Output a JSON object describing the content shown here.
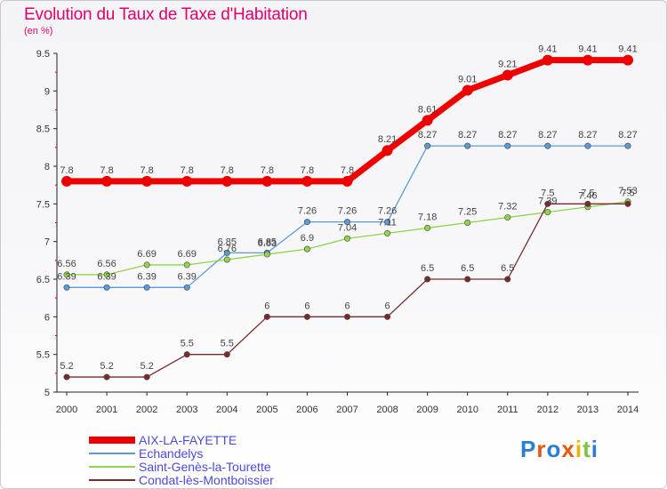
{
  "title": "Evolution du Taux de Taxe d'Habitation",
  "subtitle": "(en %)",
  "logo": {
    "text": "Proxiti",
    "letters": [
      "P",
      "r",
      "o",
      "x",
      "i",
      "t",
      "i"
    ],
    "colors": [
      "#2a7fd4",
      "#e05a10",
      "#2a7fd4",
      "#e05a10",
      "#f0b000",
      "#7cc242",
      "#2a7fd4"
    ]
  },
  "chart_data": {
    "type": "line",
    "title": "Evolution du Taux de Taxe d'Habitation",
    "ylabel": "(en %)",
    "xlabel": "",
    "ylim": [
      5,
      9.5
    ],
    "yticks": [
      "5",
      "5.5",
      "6",
      "6.5",
      "7",
      "7.5",
      "8",
      "8.5",
      "9",
      "9.5"
    ],
    "x": [
      "2000",
      "2001",
      "2002",
      "2003",
      "2004",
      "2005",
      "2006",
      "2007",
      "2008",
      "2009",
      "2010",
      "2011",
      "2012",
      "2013",
      "2014"
    ],
    "grid": false,
    "legend_position": "bottom-left",
    "series": [
      {
        "name": "AIX-LA-FAYETTE",
        "color": "#ee0000",
        "values": [
          7.8,
          7.8,
          7.8,
          7.8,
          7.8,
          7.8,
          7.8,
          7.8,
          8.21,
          8.61,
          9.01,
          9.21,
          9.41,
          9.41,
          9.41
        ],
        "labels": [
          "7.8",
          "7.8",
          "7.8",
          "7.8",
          "7.8",
          "7.8",
          "7.8",
          "7.8",
          "8.21",
          "8.61",
          "9.01",
          "9.21",
          "9.41",
          "9.41",
          "9.41"
        ]
      },
      {
        "name": "Echandelys",
        "color": "#5b9bd5",
        "values": [
          6.39,
          6.39,
          6.39,
          6.39,
          6.85,
          6.85,
          7.26,
          7.26,
          7.26,
          8.27,
          8.27,
          8.27,
          8.27,
          8.27,
          8.27
        ],
        "labels": [
          "6.39",
          "6.39",
          "6.39",
          "6.39",
          "6.85",
          "6.85",
          "7.26",
          "7.26",
          "7.26",
          "8.27",
          "8.27",
          "8.27",
          "8.27",
          "8.27",
          "8.27"
        ]
      },
      {
        "name": "Saint-Genès-la-Tourette",
        "color": "#8fd44a",
        "values": [
          6.56,
          6.56,
          6.69,
          6.69,
          6.76,
          6.83,
          6.9,
          7.04,
          7.11,
          7.18,
          7.25,
          7.32,
          7.39,
          7.46,
          7.53
        ],
        "labels": [
          "6.56",
          "6.56",
          "6.69",
          "6.69",
          "6.76",
          "6.83",
          "6.9",
          "7.04",
          "7.11",
          "7.18",
          "7.25",
          "7.32",
          "7.39",
          "7.46",
          "7.53"
        ]
      },
      {
        "name": "Condat-lès-Montboissier",
        "color": "#7a2a2a",
        "values": [
          5.2,
          5.2,
          5.2,
          5.5,
          5.5,
          6,
          6,
          6,
          6,
          6.5,
          6.5,
          6.5,
          7.5,
          7.5,
          7.5
        ],
        "labels": [
          "5.2",
          "5.2",
          "5.2",
          "5.5",
          "5.5",
          "6",
          "6",
          "6",
          "6",
          "6.5",
          "6.5",
          "6.5",
          "7.5",
          "7.5",
          "7.5"
        ]
      }
    ]
  }
}
